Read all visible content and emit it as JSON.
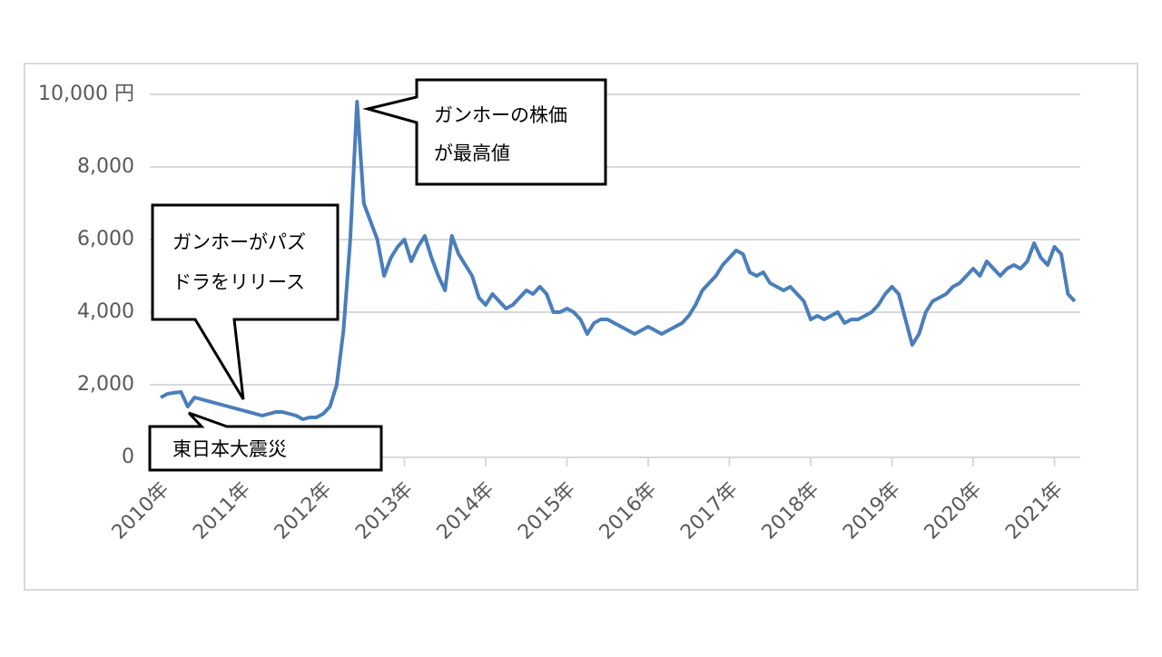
{
  "chart_data": {
    "type": "line",
    "categories": [
      "2010年",
      null,
      null,
      null,
      null,
      null,
      null,
      null,
      null,
      null,
      null,
      null,
      "2011年",
      null,
      null,
      null,
      null,
      null,
      null,
      null,
      null,
      null,
      null,
      null,
      "2012年",
      null,
      null,
      null,
      null,
      null,
      null,
      null,
      null,
      null,
      null,
      null,
      "2013年",
      null,
      null,
      null,
      null,
      null,
      null,
      null,
      null,
      null,
      null,
      null,
      "2014年",
      null,
      null,
      null,
      null,
      null,
      null,
      null,
      null,
      null,
      null,
      null,
      "2015年",
      null,
      null,
      null,
      null,
      null,
      null,
      null,
      null,
      null,
      null,
      null,
      "2016年",
      null,
      null,
      null,
      null,
      null,
      null,
      null,
      null,
      null,
      null,
      null,
      "2017年",
      null,
      null,
      null,
      null,
      null,
      null,
      null,
      null,
      null,
      null,
      null,
      "2018年",
      null,
      null,
      null,
      null,
      null,
      null,
      null,
      null,
      null,
      null,
      null,
      "2019年",
      null,
      null,
      null,
      null,
      null,
      null,
      null,
      null,
      null,
      null,
      null,
      "2020年",
      null,
      null,
      null,
      null,
      null,
      null,
      null,
      null,
      null,
      null,
      null,
      "2021年",
      null,
      null,
      null
    ],
    "values": [
      1650,
      1750,
      1780,
      1800,
      1400,
      1650,
      1600,
      1550,
      1500,
      1450,
      1400,
      1350,
      1300,
      1250,
      1200,
      1150,
      1200,
      1250,
      1250,
      1200,
      1150,
      1050,
      1100,
      1100,
      1200,
      1400,
      2000,
      3500,
      6000,
      9800,
      7000,
      6500,
      6000,
      5000,
      5500,
      5800,
      6000,
      5400,
      5800,
      6100,
      5500,
      5000,
      4600,
      6100,
      5600,
      5300,
      5000,
      4400,
      4200,
      4500,
      4300,
      4100,
      4200,
      4400,
      4600,
      4500,
      4700,
      4500,
      4000,
      4000,
      4100,
      4000,
      3800,
      3400,
      3700,
      3800,
      3800,
      3700,
      3600,
      3500,
      3400,
      3500,
      3600,
      3500,
      3400,
      3500,
      3600,
      3700,
      3900,
      4200,
      4600,
      4800,
      5000,
      5300,
      5500,
      5700,
      5600,
      5100,
      5000,
      5100,
      4800,
      4700,
      4600,
      4700,
      4500,
      4300,
      3800,
      3900,
      3800,
      3900,
      4000,
      3700,
      3800,
      3800,
      3900,
      4000,
      4200,
      4500,
      4700,
      4500,
      3800,
      3100,
      3400,
      4000,
      4300,
      4400,
      4500,
      4700,
      4800,
      5000,
      5200,
      5000,
      5400,
      5200,
      5000,
      5200,
      5300,
      5200,
      5400,
      5900,
      5500,
      5300,
      5800,
      5600,
      4500,
      4300
    ],
    "color": "#4a7ebb",
    "ylim": [
      0,
      10000
    ],
    "yticks": [
      0,
      {
        "value": 2000,
        "label": "2,000"
      },
      {
        "value": 4000,
        "label": "4,000"
      },
      {
        "value": 6000,
        "label": "6,000"
      },
      {
        "value": 8000,
        "label": "8,000"
      },
      {
        "value": 10000,
        "label": "10,000 円"
      }
    ],
    "grid": true,
    "annotations": [
      {
        "lines": [
          "ガンホーの株価",
          "が最高値"
        ]
      },
      {
        "lines": [
          "ガンホーがパズ",
          "ドラをリリース"
        ]
      },
      {
        "lines": [
          "東日本大震災"
        ]
      }
    ]
  }
}
